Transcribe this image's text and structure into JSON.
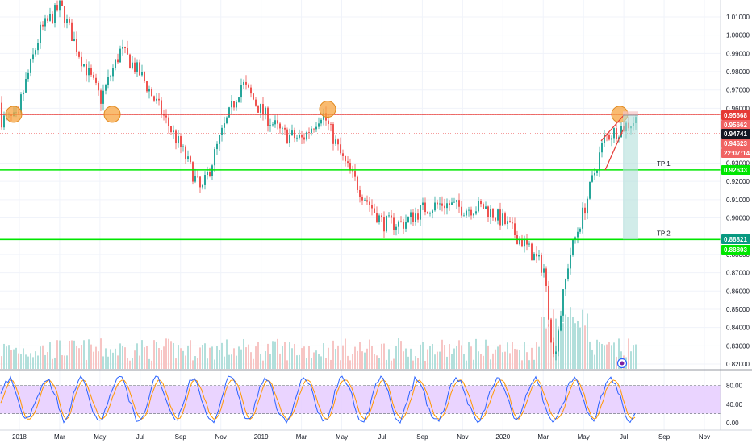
{
  "chart_data": {
    "type": "candlestick",
    "title": "",
    "x_ticks": [
      "2018",
      "Mar",
      "May",
      "Jul",
      "Sep",
      "Nov",
      "2019",
      "Mar",
      "May",
      "Jul",
      "Sep",
      "Nov",
      "2020",
      "Mar",
      "May",
      "Jul",
      "Sep",
      "Nov"
    ],
    "y_ticks": [
      "1.01000",
      "1.00000",
      "0.99000",
      "0.98000",
      "0.97000",
      "0.96000",
      "0.93000",
      "0.92000",
      "0.91000",
      "0.90000",
      "0.88000",
      "0.87000",
      "0.86000",
      "0.85000",
      "0.84000",
      "0.83000",
      "0.82000"
    ],
    "ylim": [
      0.8175,
      1.0185
    ],
    "series": [
      {
        "values": [
          {
            "date": "2018-01",
            "value": 0.963
          },
          {
            "date": "2018-02",
            "value": 1.002
          },
          {
            "date": "2018-03",
            "value": 1.016
          },
          {
            "date": "2018-04",
            "value": 0.988
          },
          {
            "date": "2018-05",
            "value": 0.965
          },
          {
            "date": "2018-06",
            "value": 0.992
          },
          {
            "date": "2018-07",
            "value": 0.978
          },
          {
            "date": "2018-08",
            "value": 0.958
          },
          {
            "date": "2018-09",
            "value": 0.938
          },
          {
            "date": "2018-10",
            "value": 0.914
          },
          {
            "date": "2018-11",
            "value": 0.946
          },
          {
            "date": "2018-12",
            "value": 0.974
          },
          {
            "date": "2019-01",
            "value": 0.958
          },
          {
            "date": "2019-02",
            "value": 0.946
          },
          {
            "date": "2019-03",
            "value": 0.943
          },
          {
            "date": "2019-04",
            "value": 0.958
          },
          {
            "date": "2019-05",
            "value": 0.932
          },
          {
            "date": "2019-06",
            "value": 0.913
          },
          {
            "date": "2019-07",
            "value": 0.897
          },
          {
            "date": "2019-08",
            "value": 0.897
          },
          {
            "date": "2019-09",
            "value": 0.905
          },
          {
            "date": "2019-10",
            "value": 0.908
          },
          {
            "date": "2019-11",
            "value": 0.905
          },
          {
            "date": "2019-12",
            "value": 0.906
          },
          {
            "date": "2020-01",
            "value": 0.898
          },
          {
            "date": "2020-02",
            "value": 0.886
          },
          {
            "date": "2020-03",
            "value": 0.872
          },
          {
            "date": "2020-03",
            "value": 0.823
          },
          {
            "date": "2020-04",
            "value": 0.878
          },
          {
            "date": "2020-05",
            "value": 0.905
          },
          {
            "date": "2020-06",
            "value": 0.944
          },
          {
            "date": "2020-07",
            "value": 0.954
          }
        ]
      }
    ],
    "levels": [
      {
        "value": 0.9567,
        "label": "",
        "color": "#e53935"
      },
      {
        "value": 0.9263,
        "label": "TP 1",
        "color": "#00e600"
      },
      {
        "value": 0.8882,
        "label": "TP 2",
        "color": "#00e600"
      }
    ],
    "price_labels": [
      {
        "text": "0.95668",
        "bg": "#e53935"
      },
      {
        "text": "0.95662",
        "bg": "#f06262"
      },
      {
        "text": "0.94741",
        "bg": "#131722"
      },
      {
        "text": "0.94623",
        "bg": "#f06262"
      },
      {
        "text": "22:07:14",
        "bg": "#f06262"
      },
      {
        "text": "0.92633",
        "bg": "#00e600"
      },
      {
        "text": "0.88821",
        "bg": "#089981"
      },
      {
        "text": "0.88803",
        "bg": "#00e600"
      }
    ],
    "oscillator": {
      "y_ticks": [
        "80.00",
        "40.00",
        "0.00"
      ],
      "ylim": [
        -5,
        95
      ],
      "band": [
        20,
        80
      ]
    },
    "colors": {
      "up": "#26a69a",
      "down": "#ef5350",
      "resistance": "#e53935",
      "target": "#00e600",
      "marker": "#f7a440",
      "oscillator_band": "#e6ccff"
    }
  }
}
